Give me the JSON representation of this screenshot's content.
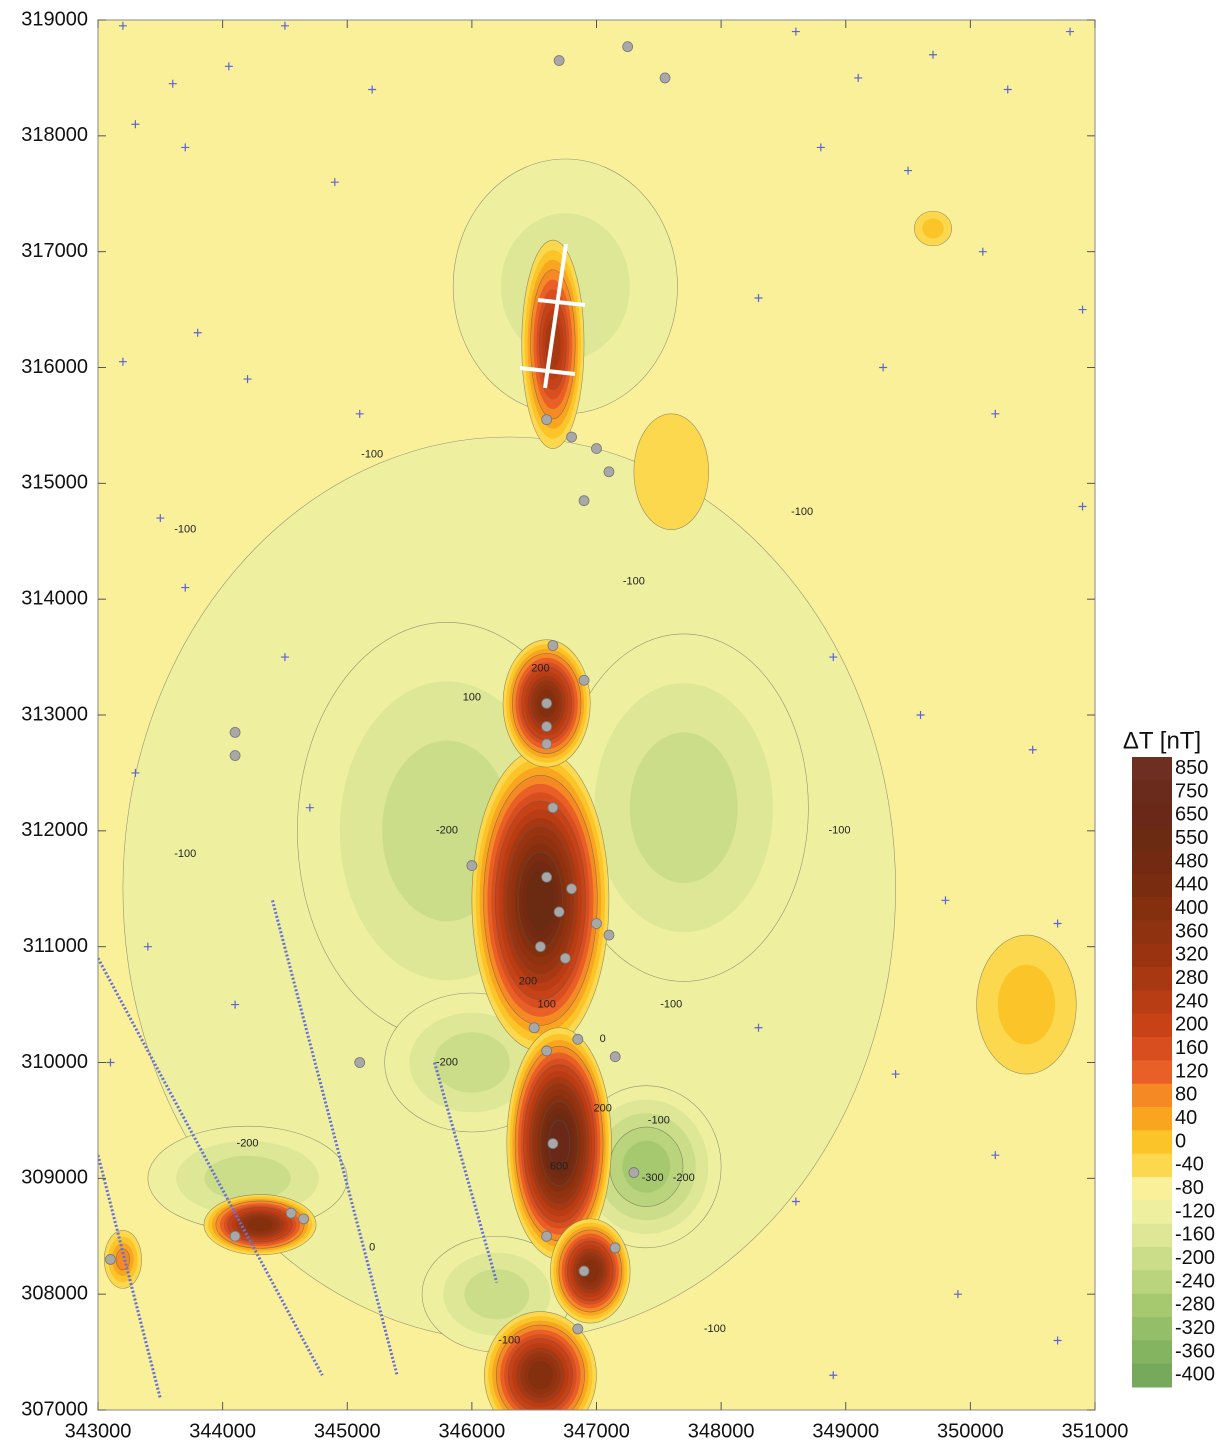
{
  "chart_data": {
    "type": "contour",
    "xlim": [
      343000,
      351000
    ],
    "ylim": [
      307000,
      319000
    ],
    "xticks": [
      343000,
      344000,
      345000,
      346000,
      347000,
      348000,
      349000,
      350000,
      351000
    ],
    "yticks": [
      307000,
      308000,
      309000,
      310000,
      311000,
      312000,
      313000,
      314000,
      315000,
      316000,
      317000,
      318000,
      319000
    ],
    "background": -80,
    "colorbar": {
      "label": "ΔT [nT]",
      "levels": [
        850,
        750,
        650,
        550,
        480,
        440,
        400,
        360,
        320,
        280,
        240,
        200,
        160,
        120,
        80,
        40,
        0,
        -40,
        -80,
        -120,
        -160,
        -200,
        -240,
        -280,
        -320,
        -360,
        -400
      ],
      "colors": [
        "#6e2e22",
        "#6b2b1c",
        "#6a2818",
        "#6b2a12",
        "#722a12",
        "#7a2c10",
        "#84300f",
        "#8e320f",
        "#9a3410",
        "#a83812",
        "#b83c14",
        "#c84218",
        "#d84e1e",
        "#e86028",
        "#f58a25",
        "#f9a520",
        "#fbc52a",
        "#fbd84e",
        "#fbf09a",
        "#eef0a0",
        "#dde796",
        "#cbdd88",
        "#b9d47c",
        "#a6c970",
        "#94be67",
        "#85b461",
        "#76a95c"
      ]
    },
    "anomalies": [
      {
        "x": 346300,
        "y": 311500,
        "rx": 3100,
        "ry": 3900,
        "value": -120
      },
      {
        "x": 345800,
        "y": 312000,
        "rx": 1200,
        "ry": 1800,
        "value": -200
      },
      {
        "x": 347700,
        "y": 312200,
        "rx": 1000,
        "ry": 1500,
        "value": -200
      },
      {
        "x": 347400,
        "y": 309100,
        "rx": 600,
        "ry": 700,
        "value": -300
      },
      {
        "x": 346000,
        "y": 310000,
        "rx": 700,
        "ry": 600,
        "value": -200
      },
      {
        "x": 346200,
        "y": 308000,
        "rx": 600,
        "ry": 500,
        "value": -200
      },
      {
        "x": 346750,
        "y": 316700,
        "rx": 900,
        "ry": 1100,
        "value": -160
      },
      {
        "x": 344200,
        "y": 309000,
        "rx": 800,
        "ry": 450,
        "value": -200
      },
      {
        "x": 350450,
        "y": 310500,
        "rx": 400,
        "ry": 600,
        "value": 0
      },
      {
        "x": 349700,
        "y": 317200,
        "rx": 150,
        "ry": 150,
        "value": 0
      },
      {
        "x": 347600,
        "y": 315100,
        "rx": 300,
        "ry": 500,
        "value": -40
      },
      {
        "x": 346650,
        "y": 316200,
        "rx": 250,
        "ry": 900,
        "value": 300
      },
      {
        "x": 346550,
        "y": 311400,
        "rx": 550,
        "ry": 1300,
        "value": 550
      },
      {
        "x": 346600,
        "y": 313100,
        "rx": 350,
        "ry": 550,
        "value": 400
      },
      {
        "x": 346700,
        "y": 309300,
        "rx": 420,
        "ry": 1000,
        "value": 650
      },
      {
        "x": 346950,
        "y": 308200,
        "rx": 320,
        "ry": 450,
        "value": 400
      },
      {
        "x": 346550,
        "y": 307300,
        "rx": 450,
        "ry": 550,
        "value": 400
      },
      {
        "x": 344300,
        "y": 308600,
        "rx": 450,
        "ry": 260,
        "value": 400
      },
      {
        "x": 343200,
        "y": 308300,
        "rx": 150,
        "ry": 250,
        "value": 80
      }
    ],
    "contour_labels": [
      {
        "text": "-100",
        "x": 345200,
        "y": 315250
      },
      {
        "text": "-100",
        "x": 343700,
        "y": 314600
      },
      {
        "text": "-100",
        "x": 347300,
        "y": 314150
      },
      {
        "text": "-100",
        "x": 348650,
        "y": 314750
      },
      {
        "text": "-100",
        "x": 348950,
        "y": 312000
      },
      {
        "text": "-100",
        "x": 343700,
        "y": 311800
      },
      {
        "text": "-100",
        "x": 347600,
        "y": 310500
      },
      {
        "text": "-100",
        "x": 347500,
        "y": 309500
      },
      {
        "text": "-100",
        "x": 347950,
        "y": 307700
      },
      {
        "text": "-100",
        "x": 346300,
        "y": 307600
      },
      {
        "text": "-200",
        "x": 345800,
        "y": 312000
      },
      {
        "text": "-200",
        "x": 345800,
        "y": 310000
      },
      {
        "text": "-200",
        "x": 344200,
        "y": 309300
      },
      {
        "text": "-200",
        "x": 347700,
        "y": 309000
      },
      {
        "text": "-300",
        "x": 347450,
        "y": 309000
      },
      {
        "text": "200",
        "x": 346550,
        "y": 313400
      },
      {
        "text": "100",
        "x": 346000,
        "y": 313150
      },
      {
        "text": "200",
        "x": 346450,
        "y": 310700
      },
      {
        "text": "100",
        "x": 346600,
        "y": 310500
      },
      {
        "text": "0",
        "x": 347050,
        "y": 310200
      },
      {
        "text": "200",
        "x": 347050,
        "y": 309600
      },
      {
        "text": "600",
        "x": 346700,
        "y": 309100
      },
      {
        "text": "0",
        "x": 345200,
        "y": 308400
      }
    ],
    "boreholes": [
      [
        346700,
        318650
      ],
      [
        347250,
        318770
      ],
      [
        347550,
        318500
      ],
      [
        346600,
        315550
      ],
      [
        346800,
        315400
      ],
      [
        347000,
        315300
      ],
      [
        347100,
        315100
      ],
      [
        346900,
        314850
      ],
      [
        346650,
        313600
      ],
      [
        346600,
        313100
      ],
      [
        346900,
        313300
      ],
      [
        346600,
        312900
      ],
      [
        346600,
        312750
      ],
      [
        346650,
        312200
      ],
      [
        346000,
        311700
      ],
      [
        346600,
        311600
      ],
      [
        346700,
        311300
      ],
      [
        346800,
        311500
      ],
      [
        347000,
        311200
      ],
      [
        347100,
        311100
      ],
      [
        346550,
        311000
      ],
      [
        346750,
        310900
      ],
      [
        346500,
        310300
      ],
      [
        346850,
        310200
      ],
      [
        346600,
        310100
      ],
      [
        347150,
        310050
      ],
      [
        346650,
        309300
      ],
      [
        347300,
        309050
      ],
      [
        346600,
        308500
      ],
      [
        346900,
        308200
      ],
      [
        347150,
        308400
      ],
      [
        346850,
        307700
      ],
      [
        344100,
        308500
      ],
      [
        344550,
        308700
      ],
      [
        344650,
        308650
      ],
      [
        345100,
        310000
      ],
      [
        343100,
        308300
      ],
      [
        344100,
        312850
      ],
      [
        344100,
        312650
      ]
    ],
    "stations": [
      [
        343200,
        318950
      ],
      [
        343600,
        318450
      ],
      [
        344050,
        318600
      ],
      [
        344500,
        318950
      ],
      [
        343300,
        318100
      ],
      [
        343700,
        317900
      ],
      [
        344900,
        317600
      ],
      [
        345200,
        318400
      ],
      [
        343200,
        316050
      ],
      [
        343800,
        316300
      ],
      [
        344200,
        315900
      ],
      [
        345100,
        315600
      ],
      [
        343500,
        314700
      ],
      [
        343700,
        314100
      ],
      [
        344500,
        313500
      ],
      [
        343300,
        312500
      ],
      [
        344700,
        312200
      ],
      [
        343400,
        311000
      ],
      [
        343100,
        310000
      ],
      [
        344100,
        310500
      ],
      [
        348600,
        318900
      ],
      [
        349100,
        318500
      ],
      [
        349700,
        318700
      ],
      [
        350300,
        318400
      ],
      [
        350800,
        318900
      ],
      [
        348800,
        317900
      ],
      [
        349500,
        317700
      ],
      [
        350100,
        317000
      ],
      [
        350900,
        316500
      ],
      [
        348300,
        316600
      ],
      [
        349300,
        316000
      ],
      [
        350200,
        315600
      ],
      [
        350900,
        314800
      ],
      [
        348900,
        313500
      ],
      [
        349600,
        313000
      ],
      [
        350500,
        312700
      ],
      [
        349800,
        311400
      ],
      [
        350700,
        311200
      ],
      [
        348300,
        310300
      ],
      [
        349400,
        309900
      ],
      [
        350200,
        309200
      ],
      [
        348600,
        308800
      ],
      [
        349900,
        308000
      ],
      [
        350700,
        307600
      ],
      [
        348900,
        307300
      ]
    ]
  }
}
